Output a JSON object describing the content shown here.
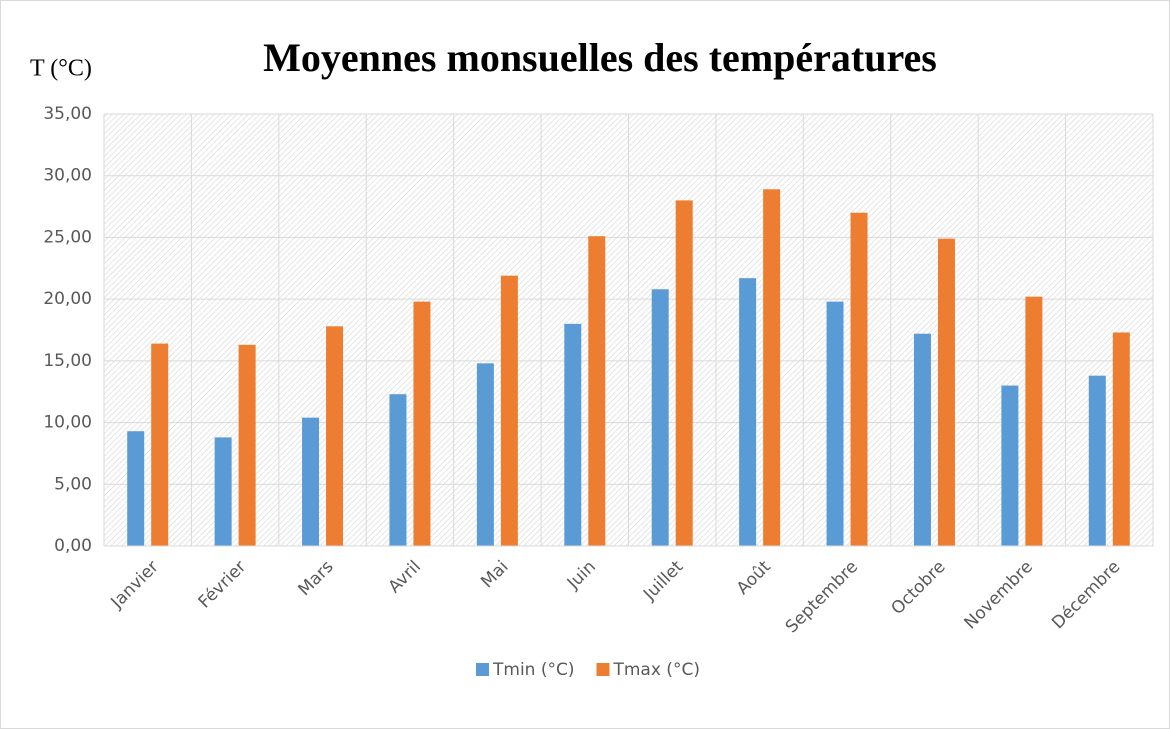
{
  "chart_data": {
    "type": "bar",
    "title": "Moyennes monsuelles des températures",
    "y_label": "T (°C)",
    "categories": [
      "Janvier",
      "Février",
      "Mars",
      "Avril",
      "Mai",
      "Juin",
      "Juillet",
      "Août",
      "Septembre",
      "Octobre",
      "Novembre",
      "Décembre"
    ],
    "series": [
      {
        "name": "Tmin (°C)",
        "color": "#5b9bd5",
        "values": [
          9.3,
          8.8,
          10.4,
          12.3,
          14.8,
          18.0,
          20.8,
          21.7,
          19.8,
          17.2,
          13.0,
          13.8
        ]
      },
      {
        "name": "Tmax (°C)",
        "color": "#ed7d31",
        "values": [
          16.4,
          16.3,
          17.8,
          19.8,
          21.9,
          25.1,
          28.0,
          28.9,
          27.0,
          24.9,
          20.2,
          17.3
        ]
      }
    ],
    "ylim": [
      0,
      35
    ],
    "yticks": [
      {
        "value": 0,
        "label": "0,00"
      },
      {
        "value": 5,
        "label": "5,00"
      },
      {
        "value": 10,
        "label": "10,00"
      },
      {
        "value": 15,
        "label": "15,00"
      },
      {
        "value": 20,
        "label": "20,00"
      },
      {
        "value": 25,
        "label": "25,00"
      },
      {
        "value": 30,
        "label": "30,00"
      },
      {
        "value": 35,
        "label": "35,00"
      }
    ],
    "grid": true,
    "legend": "bottom"
  }
}
